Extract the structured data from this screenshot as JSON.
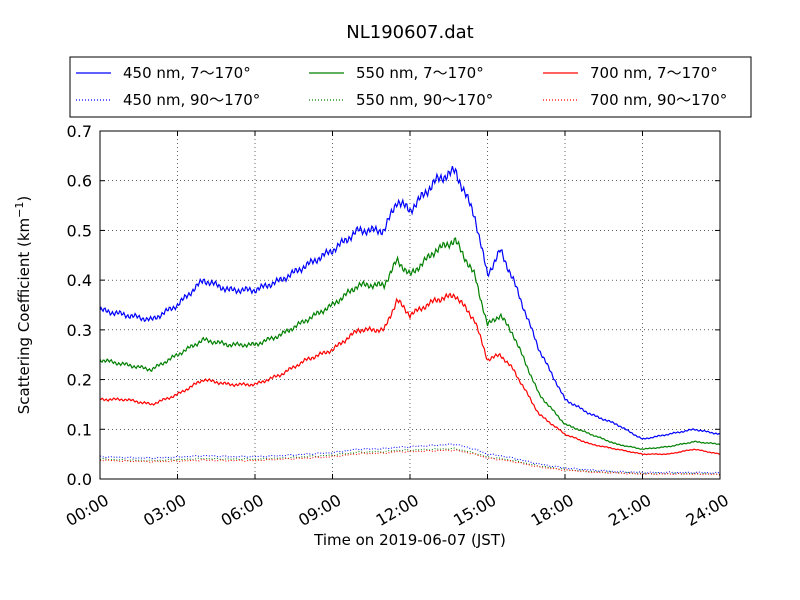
{
  "chart_data": {
    "type": "line",
    "title": "NL190607.dat",
    "xlabel": "Time on 2019-06-07 (JST)",
    "ylabel_main": "Scattering Coefficient (km",
    "ylabel_exp": "−1",
    "ylabel_close": ")",
    "xlim": [
      "00:00",
      "24:00"
    ],
    "ylim": [
      0,
      0.7
    ],
    "grid": true,
    "grid_style": "dotted",
    "legend_position": "top, above plot, 3 columns",
    "xticks": [
      "00:00",
      "03:00",
      "06:00",
      "09:00",
      "12:00",
      "15:00",
      "18:00",
      "21:00",
      "24:00"
    ],
    "yticks": [
      "0.0",
      "0.1",
      "0.2",
      "0.3",
      "0.4",
      "0.5",
      "0.6",
      "0.7"
    ],
    "x": [
      "00:00",
      "01:00",
      "02:00",
      "03:00",
      "04:00",
      "05:00",
      "06:00",
      "07:00",
      "08:00",
      "09:00",
      "10:00",
      "11:00",
      "11:30",
      "12:00",
      "13:00",
      "13:45",
      "14:30",
      "15:00",
      "15:30",
      "16:00",
      "17:00",
      "18:00",
      "19:00",
      "20:00",
      "21:00",
      "22:00",
      "23:00",
      "24:00"
    ],
    "series": [
      {
        "name": "450 nm, 7～170°",
        "color": "#0000ff",
        "style": "solid",
        "values": [
          0.34,
          0.33,
          0.32,
          0.35,
          0.4,
          0.38,
          0.38,
          0.4,
          0.43,
          0.46,
          0.5,
          0.5,
          0.56,
          0.54,
          0.6,
          0.62,
          0.53,
          0.41,
          0.46,
          0.4,
          0.26,
          0.16,
          0.13,
          0.11,
          0.08,
          0.09,
          0.1,
          0.09
        ]
      },
      {
        "name": "450 nm, 90～170°",
        "color": "#0000ff",
        "style": "dotted",
        "values": [
          0.045,
          0.043,
          0.042,
          0.044,
          0.047,
          0.045,
          0.045,
          0.047,
          0.05,
          0.053,
          0.06,
          0.061,
          0.064,
          0.065,
          0.068,
          0.07,
          0.06,
          0.05,
          0.047,
          0.042,
          0.03,
          0.022,
          0.018,
          0.015,
          0.013,
          0.013,
          0.013,
          0.012
        ]
      },
      {
        "name": "550 nm, 7～170°",
        "color": "#008000",
        "style": "solid",
        "values": [
          0.24,
          0.23,
          0.22,
          0.25,
          0.28,
          0.27,
          0.27,
          0.29,
          0.32,
          0.35,
          0.39,
          0.39,
          0.44,
          0.41,
          0.46,
          0.48,
          0.41,
          0.31,
          0.33,
          0.29,
          0.17,
          0.11,
          0.09,
          0.07,
          0.06,
          0.065,
          0.075,
          0.07
        ]
      },
      {
        "name": "550 nm, 90～170°",
        "color": "#008000",
        "style": "dotted",
        "values": [
          0.04,
          0.038,
          0.037,
          0.039,
          0.041,
          0.04,
          0.04,
          0.042,
          0.045,
          0.048,
          0.054,
          0.055,
          0.058,
          0.058,
          0.06,
          0.061,
          0.052,
          0.044,
          0.041,
          0.037,
          0.026,
          0.019,
          0.015,
          0.013,
          0.011,
          0.011,
          0.011,
          0.01
        ]
      },
      {
        "name": "700 nm, 7～170°",
        "color": "#ff0000",
        "style": "solid",
        "values": [
          0.16,
          0.16,
          0.15,
          0.17,
          0.2,
          0.19,
          0.19,
          0.21,
          0.24,
          0.26,
          0.3,
          0.3,
          0.36,
          0.33,
          0.36,
          0.37,
          0.32,
          0.24,
          0.25,
          0.22,
          0.13,
          0.09,
          0.07,
          0.06,
          0.05,
          0.05,
          0.06,
          0.05
        ]
      },
      {
        "name": "700 nm, 90～170°",
        "color": "#ff0000",
        "style": "dotted",
        "values": [
          0.038,
          0.036,
          0.035,
          0.036,
          0.038,
          0.037,
          0.037,
          0.04,
          0.042,
          0.045,
          0.051,
          0.052,
          0.055,
          0.055,
          0.057,
          0.058,
          0.05,
          0.042,
          0.039,
          0.035,
          0.024,
          0.018,
          0.014,
          0.012,
          0.01,
          0.01,
          0.01,
          0.009
        ]
      }
    ]
  }
}
